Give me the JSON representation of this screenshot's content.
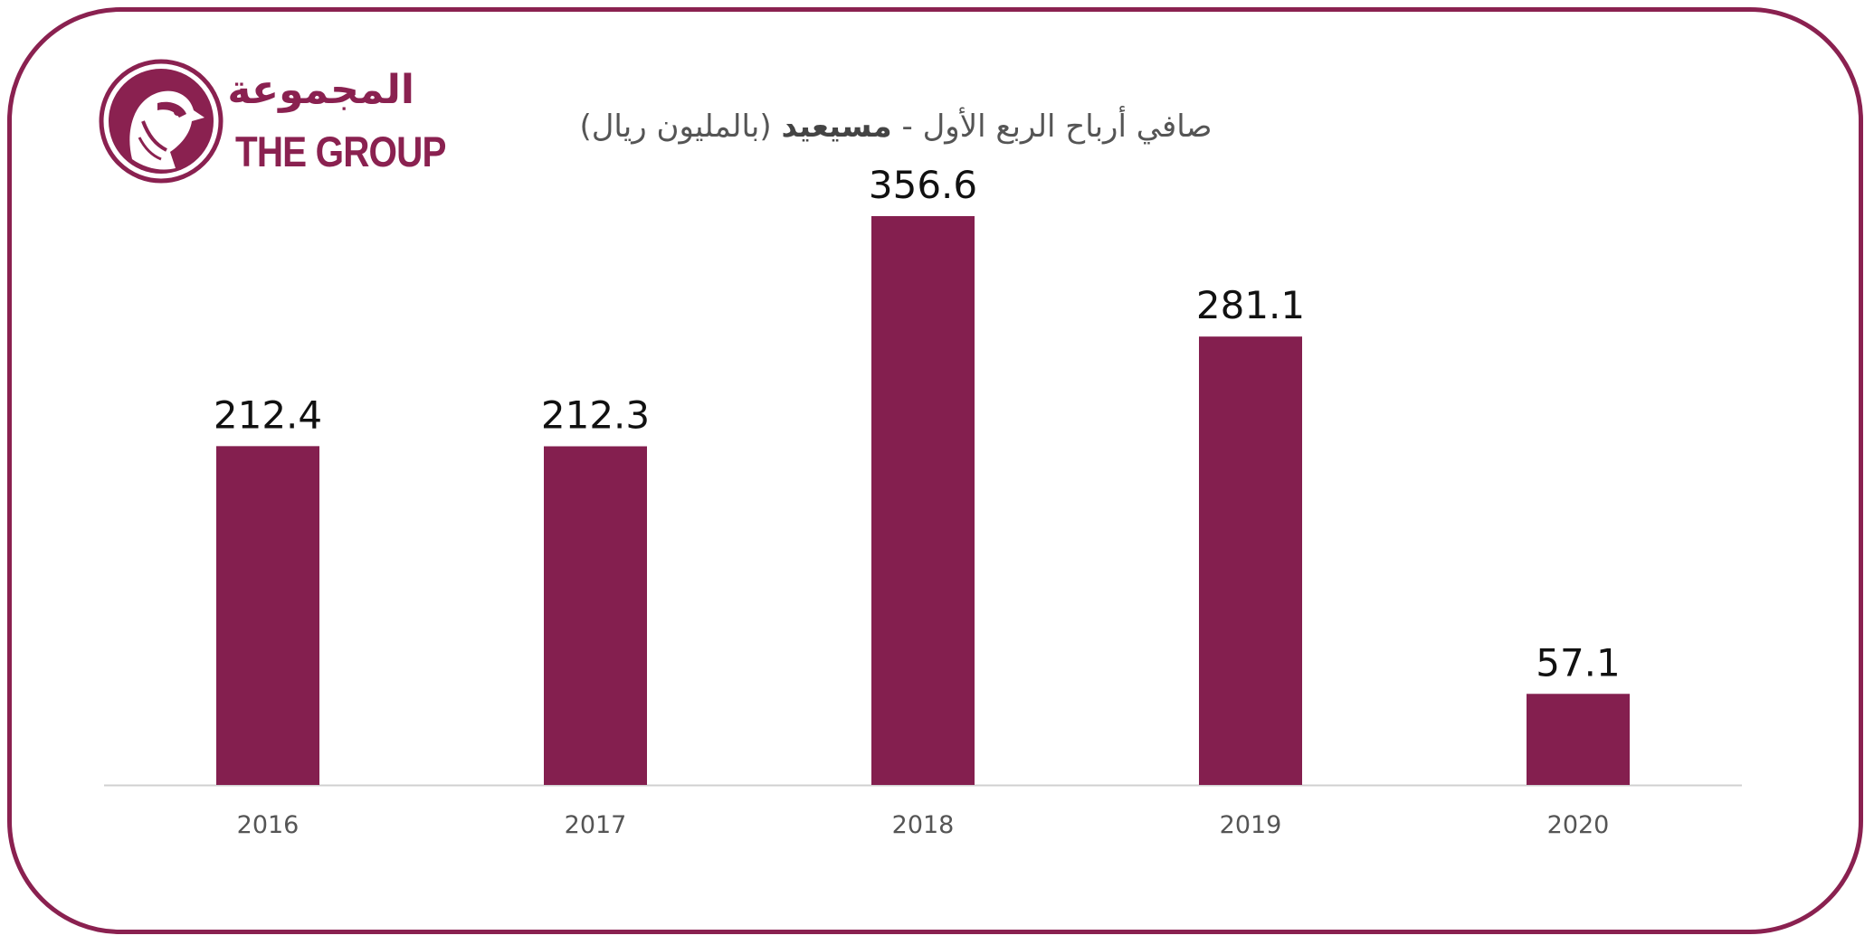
{
  "logo": {
    "arabic_name": "المجموعة",
    "english_name": "THE GROUP",
    "emblem_icon": "falcon-head-icon"
  },
  "colors": {
    "bar": "#841f4f",
    "frame": "#8a2150",
    "axis": "#d0d0d0"
  },
  "chart_data": {
    "type": "bar",
    "title_part1": "صافي أرباح الربع الأول -",
    "title_part2": "مسيعيد",
    "title_part3": "(بالمليون ريال)",
    "categories": [
      "2016",
      "2017",
      "2018",
      "2019",
      "2020"
    ],
    "values": [
      212.4,
      212.3,
      356.6,
      281.1,
      57.1
    ],
    "value_labels": [
      "212.4",
      "212.3",
      "356.6",
      "281.1",
      "57.1"
    ],
    "xlabel": "",
    "ylabel": "",
    "ylim": [
      0,
      356.6
    ],
    "grid": false,
    "legend": "none"
  }
}
